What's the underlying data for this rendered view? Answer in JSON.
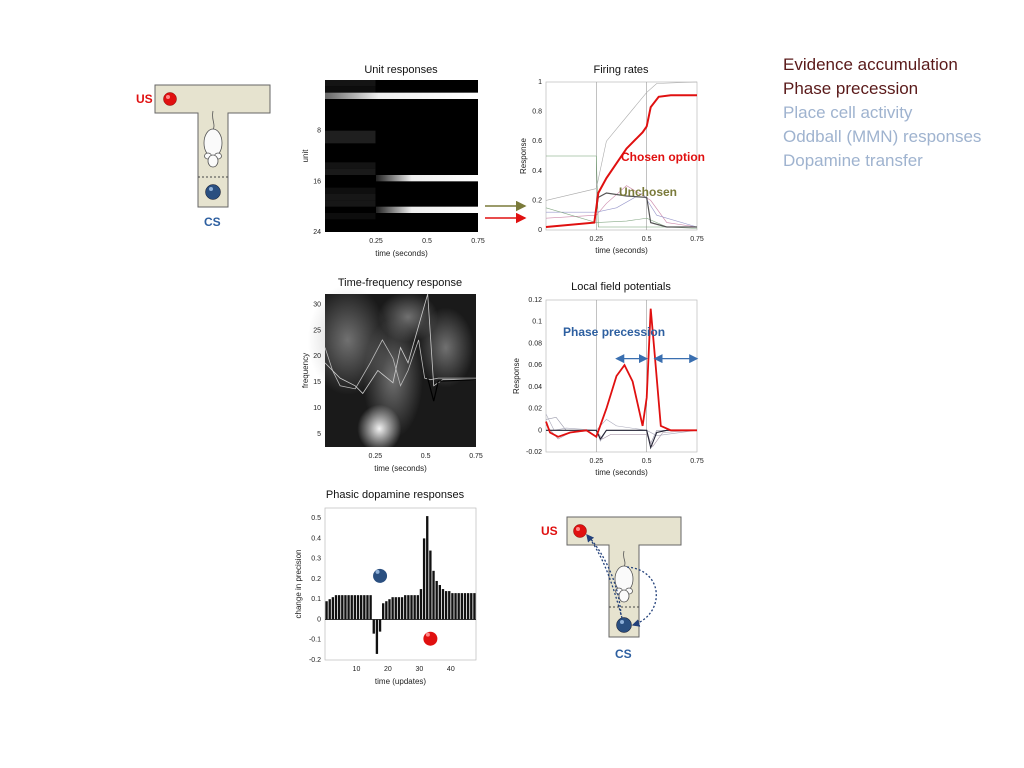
{
  "legend": {
    "items": [
      {
        "label": "Evidence accumulation",
        "color": "#5a1a1a"
      },
      {
        "label": "Phase precession",
        "color": "#5a1a1a"
      },
      {
        "label": "Place cell activity",
        "color": "#9fb3cf"
      },
      {
        "label": "Oddball (MMN) responses",
        "color": "#9fb3cf"
      },
      {
        "label": "Dopamine transfer",
        "color": "#9fb3cf"
      }
    ]
  },
  "maze_top": {
    "us_label": "US",
    "cs_label": "CS"
  },
  "maze_bottom": {
    "us_label": "US",
    "cs_label": "CS"
  },
  "colors": {
    "red": "#e01010",
    "blue": "#2a4f80",
    "chosen": "#e01010",
    "unchosen": "#7a7a3a",
    "maze_fill": "#e6e3cf",
    "label_blue": "#2d5fa0",
    "label_red": "#e01010"
  },
  "chart_data": [
    {
      "type": "heatmap",
      "title": "Unit responses",
      "xlabel": "time (seconds)",
      "ylabel": "unit",
      "xticks": [
        "0.25",
        "0.5",
        "0.75"
      ],
      "yticks": [
        "8",
        "16",
        "24"
      ],
      "rows": 24,
      "bright_rows": [
        {
          "row": 2,
          "from": 0,
          "to": 0.75,
          "level": 0.75
        },
        {
          "row": 15,
          "from": 0.25,
          "to": 0.75,
          "level": 1.0
        },
        {
          "row": 20,
          "from": 0.25,
          "to": 0.75,
          "level": 1.0
        }
      ]
    },
    {
      "type": "line",
      "title": "Firing rates",
      "xlabel": "time (seconds)",
      "ylabel": "Response",
      "xlim": [
        0,
        0.75
      ],
      "ylim": [
        0,
        1
      ],
      "xticks": [
        "0.25",
        "0.5",
        "0.75"
      ],
      "yticks": [
        "0",
        "0.2",
        "0.4",
        "0.6",
        "0.8",
        "1"
      ],
      "annotations": [
        "Chosen option",
        "Unchosen"
      ],
      "series": [
        {
          "name": "Chosen option",
          "x": [
            0,
            0.24,
            0.26,
            0.3,
            0.4,
            0.48,
            0.5,
            0.52,
            0.56,
            0.62,
            0.75
          ],
          "y": [
            0.02,
            0.05,
            0.25,
            0.35,
            0.55,
            0.66,
            0.7,
            0.83,
            0.9,
            0.91,
            0.91
          ]
        },
        {
          "name": "Unchosen",
          "x": [
            0,
            0.24,
            0.26,
            0.3,
            0.4,
            0.5,
            0.52,
            0.6,
            0.75
          ],
          "y": [
            0.02,
            0.05,
            0.22,
            0.25,
            0.23,
            0.22,
            0.05,
            0.02,
            0.02
          ]
        }
      ]
    },
    {
      "type": "heatmap",
      "title": "Time-frequency response",
      "xlabel": "time (seconds)",
      "ylabel": "frequency",
      "xticks": [
        "0.25",
        "0.5",
        "0.75"
      ],
      "yticks": [
        "5",
        "10",
        "15",
        "20",
        "25",
        "30"
      ]
    },
    {
      "type": "line",
      "title": "Local field potentials",
      "xlabel": "time (seconds)",
      "ylabel": "Response",
      "xlim": [
        0,
        0.75
      ],
      "ylim": [
        -0.02,
        0.12
      ],
      "xticks": [
        "0.25",
        "0.5",
        "0.75"
      ],
      "yticks": [
        "-0.02",
        "0",
        "0.02",
        "0.04",
        "0.06",
        "0.08",
        "0.1",
        "0.12"
      ],
      "annotations": [
        "Phase precession"
      ],
      "series": [
        {
          "x": [
            0,
            0.02,
            0.06,
            0.12,
            0.2,
            0.25,
            0.3,
            0.35,
            0.39,
            0.43,
            0.48,
            0.5,
            0.52,
            0.54,
            0.57,
            0.62,
            0.75
          ],
          "y": [
            0.008,
            -0.002,
            -0.006,
            -0.002,
            0.0,
            -0.006,
            0.02,
            0.05,
            0.06,
            0.045,
            0.004,
            0.03,
            0.112,
            0.07,
            0.004,
            0.0,
            0.0
          ]
        }
      ]
    },
    {
      "type": "bar",
      "title": "Phasic dopamine responses",
      "xlabel": "time (updates)",
      "ylabel": "change in precision",
      "xlim": [
        0,
        48
      ],
      "ylim": [
        -0.2,
        0.55
      ],
      "xticks": [
        "10",
        "20",
        "30",
        "40"
      ],
      "yticks": [
        "-0.2",
        "-0.1",
        "0",
        "0.1",
        "0.2",
        "0.3",
        "0.4",
        "0.5"
      ],
      "values": [
        0.09,
        0.1,
        0.11,
        0.12,
        0.12,
        0.12,
        0.12,
        0.12,
        0.12,
        0.12,
        0.12,
        0.12,
        0.12,
        0.12,
        0.12,
        -0.07,
        -0.17,
        -0.06,
        0.08,
        0.09,
        0.1,
        0.11,
        0.11,
        0.11,
        0.11,
        0.12,
        0.12,
        0.12,
        0.12,
        0.12,
        0.15,
        0.4,
        0.51,
        0.34,
        0.24,
        0.19,
        0.17,
        0.15,
        0.14,
        0.14,
        0.13,
        0.13,
        0.13,
        0.13,
        0.13,
        0.13,
        0.13,
        0.13
      ]
    }
  ]
}
